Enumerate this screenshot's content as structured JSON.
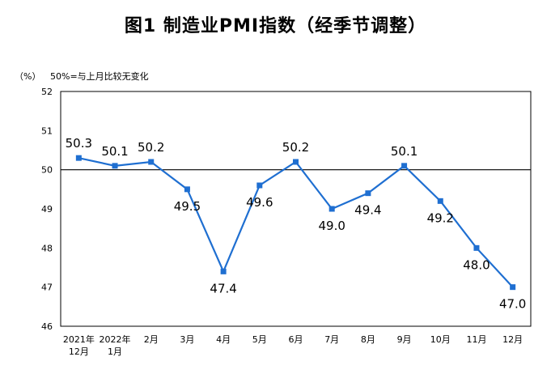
{
  "title": "图1 制造业PMI指数（经季节调整）",
  "unit_label": "（%）",
  "note": "50%=与上月比较无变化",
  "chart_data": {
    "type": "line",
    "title": "图1 制造业PMI指数（经季节调整）",
    "ylabel": "（%）",
    "ylim": [
      46,
      52
    ],
    "yticks": [
      "52",
      "51",
      "50",
      "49",
      "48",
      "47",
      "46"
    ],
    "reference_line": 50,
    "categories": [
      [
        "2021年",
        "12月"
      ],
      [
        "2022年",
        "1月"
      ],
      [
        "2月"
      ],
      [
        "3月"
      ],
      [
        "4月"
      ],
      [
        "5月"
      ],
      [
        "6月"
      ],
      [
        "7月"
      ],
      [
        "8月"
      ],
      [
        "9月"
      ],
      [
        "10月"
      ],
      [
        "11月"
      ],
      [
        "12月"
      ]
    ],
    "values": [
      50.3,
      50.1,
      50.2,
      49.5,
      47.4,
      49.6,
      50.2,
      49.0,
      49.4,
      50.1,
      49.2,
      48.0,
      47.0
    ],
    "data_labels": [
      "50.3",
      "50.1",
      "50.2",
      "49.5",
      "47.4",
      "49.6",
      "50.2",
      "49.0",
      "49.4",
      "50.1",
      "49.2",
      "48.0",
      "47.0"
    ],
    "line_color": "#1f6fd1",
    "grid": false
  }
}
